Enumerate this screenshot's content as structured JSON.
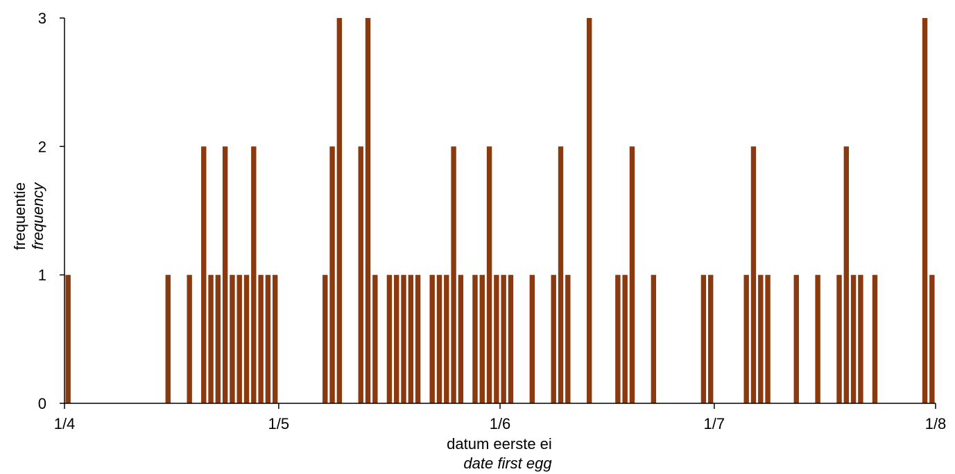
{
  "chart_data": {
    "type": "bar",
    "title": "",
    "xlabel": "datum eerste ei",
    "xlabel_en": "date first egg",
    "ylabel": "frequentie",
    "ylabel_en": "frequency",
    "x_ticks": [
      "1/4",
      "1/5",
      "1/6",
      "1/7",
      "1/8"
    ],
    "y_ticks": [
      0,
      1,
      2,
      3
    ],
    "ylim": [
      0,
      3
    ],
    "xlim": [
      "1/4",
      "1/8"
    ],
    "grid": false,
    "legend": "none",
    "bar_color": "#8B3A0F",
    "x": [
      "1/4",
      "15/4",
      "18/4",
      "20/4",
      "21/4",
      "22/4",
      "23/4",
      "24/4",
      "25/4",
      "26/4",
      "27/4",
      "28/4",
      "29/4",
      "30/4",
      "7/5",
      "8/5",
      "9/5",
      "12/5",
      "13/5",
      "14/5",
      "16/5",
      "17/5",
      "18/5",
      "19/5",
      "20/5",
      "22/5",
      "23/5",
      "24/5",
      "25/5",
      "26/5",
      "28/5",
      "29/5",
      "30/5",
      "31/5",
      "1/6",
      "2/6",
      "5/6",
      "8/6",
      "9/6",
      "10/6",
      "13/6",
      "17/6",
      "18/6",
      "19/6",
      "22/6",
      "29/6",
      "30/6",
      "5/7",
      "6/7",
      "7/7",
      "8/7",
      "12/7",
      "15/7",
      "18/7",
      "19/7",
      "20/7",
      "21/7",
      "23/7",
      "30/7",
      "31/7",
      "4/8",
      "5/8",
      "6/8",
      "10/8",
      "15/8",
      "16/8",
      "24/8",
      "25/8",
      "26/8",
      "27/8",
      "28/8",
      "29/8",
      "30/8"
    ],
    "values": [
      1,
      1,
      1,
      2,
      1,
      1,
      2,
      1,
      1,
      1,
      2,
      1,
      1,
      1,
      1,
      2,
      3,
      2,
      3,
      1,
      1,
      1,
      1,
      1,
      1,
      1,
      1,
      1,
      2,
      1,
      1,
      1,
      2,
      1,
      1,
      1,
      1,
      1,
      2,
      1,
      3,
      1,
      1,
      2,
      1,
      1,
      1,
      1,
      2,
      1,
      1,
      1,
      1,
      1,
      2,
      1,
      1,
      1,
      3,
      1,
      1,
      1,
      1,
      1,
      1,
      1,
      1,
      1,
      1,
      1,
      1,
      1,
      1
    ]
  }
}
